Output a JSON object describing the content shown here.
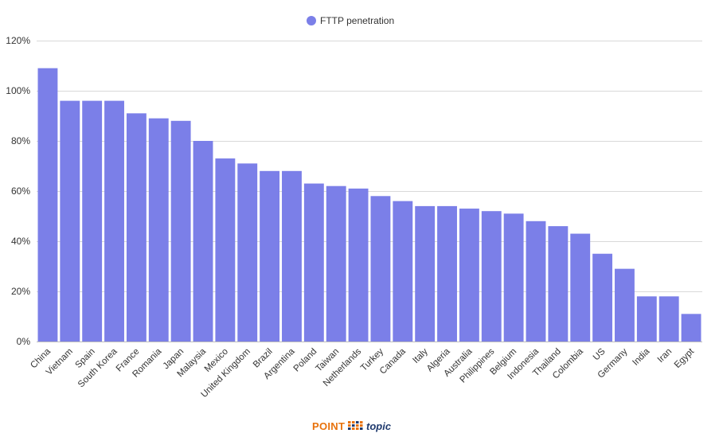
{
  "chart_data": {
    "type": "bar",
    "title": "",
    "xlabel": "",
    "ylabel": "",
    "legend_position": "top-center",
    "ylim": [
      0,
      120
    ],
    "yticks": [
      0,
      20,
      40,
      60,
      80,
      100,
      120
    ],
    "ytick_labels": [
      "0%",
      "20%",
      "40%",
      "60%",
      "80%",
      "100%",
      "120%"
    ],
    "grid": true,
    "categories": [
      "China",
      "Vietnam",
      "Spain",
      "South Korea",
      "France",
      "Romania",
      "Japan",
      "Malaysia",
      "Mexico",
      "United Kingdom",
      "Brazil",
      "Argentina",
      "Poland",
      "Taiwan",
      "Netherlands",
      "Turkey",
      "Canada",
      "Italy",
      "Algeria",
      "Australia",
      "Philippines",
      "Belgium",
      "Indonesia",
      "Thailand",
      "Colombia",
      "US",
      "Germany",
      "India",
      "Iran",
      "Egypt"
    ],
    "series": [
      {
        "name": "FTTP penetration",
        "color": "#7b7fe8",
        "values": [
          109,
          96,
          96,
          96,
          91,
          89,
          88,
          80,
          73,
          71,
          68,
          68,
          63,
          62,
          61,
          58,
          56,
          54,
          54,
          53,
          52,
          51,
          48,
          46,
          43,
          35,
          29,
          18,
          18,
          11
        ]
      }
    ]
  },
  "logo": {
    "part1": "POINT",
    "part2": "topic",
    "color1": "#e8720c",
    "color2": "#1f3a6e"
  }
}
